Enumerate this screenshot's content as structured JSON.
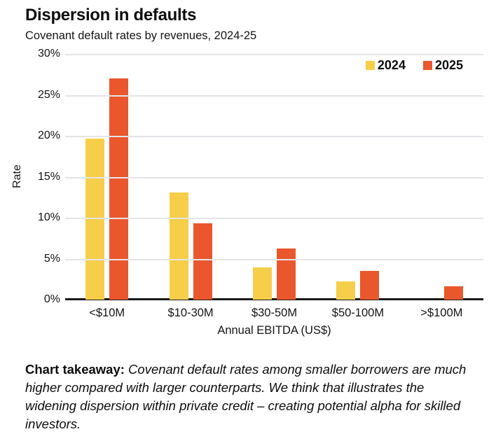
{
  "header": {
    "title": "Dispersion in defaults",
    "subtitle": "Covenant default rates by revenues, 2024-25"
  },
  "chart_data": {
    "type": "bar",
    "categories": [
      "<$10M",
      "$10-30M",
      "$30-50M",
      "$50-100M",
      ">$100M"
    ],
    "series": [
      {
        "name": "2024",
        "color": "#F6CE49",
        "values": [
          19.7,
          13.1,
          3.9,
          2.2,
          0
        ]
      },
      {
        "name": "2025",
        "color": "#EA572C",
        "values": [
          27.0,
          9.3,
          6.2,
          3.5,
          1.6
        ]
      }
    ],
    "xlabel": "Annual EBITDA (US$)",
    "ylabel": "Rate",
    "ylim": [
      0,
      30
    ],
    "yticks": [
      "30%",
      "25%",
      "20%",
      "15%",
      "10%",
      "5%",
      "0%"
    ],
    "grid": true,
    "legend_position": "top-right",
    "grid_color": "#E4E4E9",
    "axis_color": "#1A1A1A"
  },
  "takeaway": {
    "lead": "Chart takeaway:",
    "body": "Covenant default rates among smaller borrowers are much higher compared with larger counterparts. We think that illustrates the widening dispersion within private credit – creating potential alpha for skilled investors."
  }
}
